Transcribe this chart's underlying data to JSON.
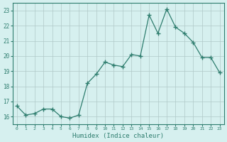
{
  "x": [
    0,
    1,
    2,
    3,
    4,
    5,
    6,
    7,
    8,
    9,
    10,
    11,
    12,
    13,
    14,
    15,
    16,
    17,
    18,
    19,
    20,
    21,
    22,
    23
  ],
  "y": [
    16.7,
    16.1,
    16.2,
    16.5,
    16.5,
    16.0,
    15.9,
    16.1,
    18.2,
    18.8,
    19.6,
    19.4,
    19.3,
    20.1,
    20.0,
    22.7,
    21.5,
    23.1,
    21.9,
    21.5,
    20.9,
    19.9,
    19.9,
    18.9
  ],
  "xlabel": "Humidex (Indice chaleur)",
  "bg_color": "#d6f0ef",
  "line_color": "#2e7d6e",
  "grid_color": "#b0c8c8",
  "text_color": "#2e7d6e",
  "ylim": [
    15.5,
    23.5
  ],
  "xlim": [
    -0.5,
    23.5
  ],
  "yticks": [
    16,
    17,
    18,
    19,
    20,
    21,
    22,
    23
  ],
  "xticks": [
    0,
    1,
    2,
    3,
    4,
    5,
    6,
    7,
    8,
    9,
    10,
    11,
    12,
    13,
    14,
    15,
    16,
    17,
    18,
    19,
    20,
    21,
    22,
    23
  ]
}
